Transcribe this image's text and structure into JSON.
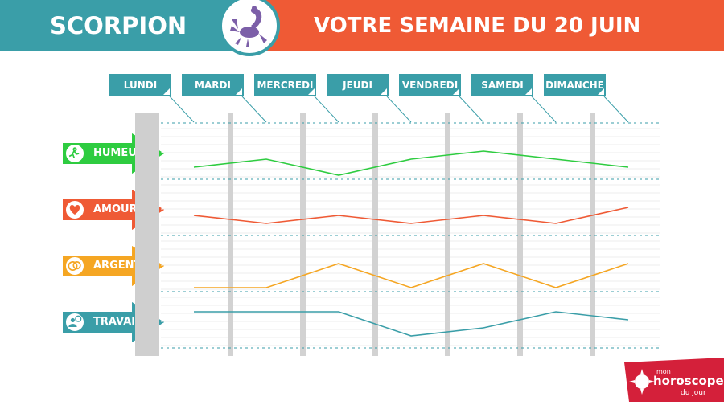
{
  "header": {
    "sign": "SCORPION",
    "week": "VOTRE SEMAINE DU 20 JUIN",
    "left_color": "#3a9ea8",
    "right_color": "#ef5a35",
    "sign_icon": "scorpion-icon"
  },
  "logo": {
    "line1": "mon",
    "line2": "horoscope",
    "line3": "du jour",
    "color": "#d4203a"
  },
  "chart_data": {
    "type": "line",
    "categories": [
      "LUNDI",
      "MARDI",
      "MERCREDI",
      "JEUDI",
      "VENDREDI",
      "SAMEDI",
      "DIMANCHE"
    ],
    "series": [
      {
        "name": "HUMEUR",
        "color": "#2ecc40",
        "icon": "running-person-icon",
        "values": [
          1,
          2,
          0,
          2,
          3,
          2,
          1
        ]
      },
      {
        "name": "AMOUR",
        "color": "#ef5a35",
        "icon": "heart-icon",
        "values": [
          2,
          1,
          2,
          1,
          2,
          1,
          3
        ]
      },
      {
        "name": "ARGENT",
        "color": "#f5a623",
        "icon": "coins-icon",
        "values": [
          0,
          0,
          3,
          0,
          3,
          0,
          3
        ]
      },
      {
        "name": "TRAVAIL",
        "color": "#3a9ea8",
        "icon": "worker-clock-icon",
        "values": [
          4,
          4,
          4,
          1,
          2,
          4,
          3
        ]
      }
    ],
    "ylim": [
      0,
      4
    ],
    "grid": true
  }
}
